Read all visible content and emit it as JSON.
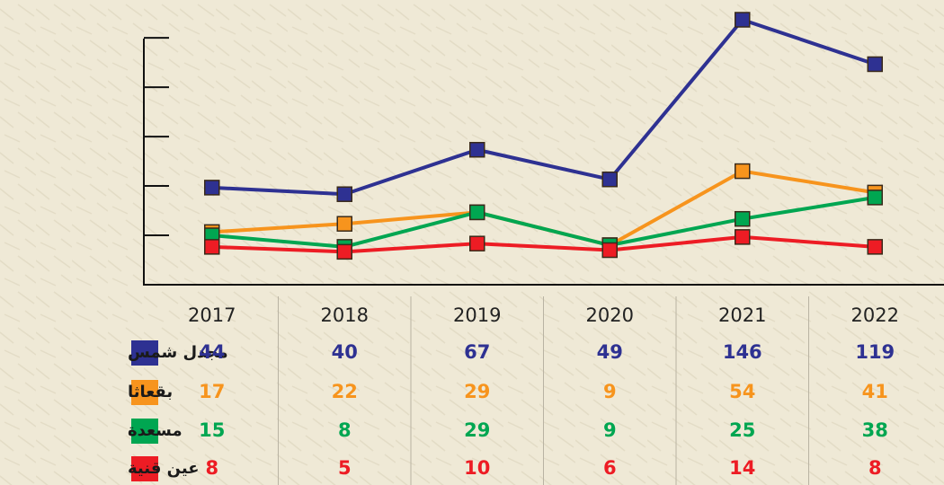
{
  "chart_data": {
    "type": "line",
    "categories": [
      "2017",
      "2018",
      "2019",
      "2020",
      "2021",
      "2022"
    ],
    "series": [
      {
        "name": "مجدل شمس",
        "color": "#2e3192",
        "values": [
          44,
          40,
          67,
          49,
          146,
          119
        ]
      },
      {
        "name": "بقعاثا",
        "color": "#f7941d",
        "values": [
          17,
          22,
          29,
          9,
          54,
          41
        ]
      },
      {
        "name": "مسعدة",
        "color": "#00a651",
        "values": [
          15,
          8,
          29,
          9,
          25,
          38
        ]
      },
      {
        "name": "عين قنية",
        "color": "#ed1c24",
        "values": [
          8,
          5,
          10,
          6,
          14,
          8
        ]
      }
    ],
    "ylim": [
      -15,
      158
    ],
    "yticks": [
      15,
      45,
      75,
      105,
      135
    ],
    "grid": false
  }
}
